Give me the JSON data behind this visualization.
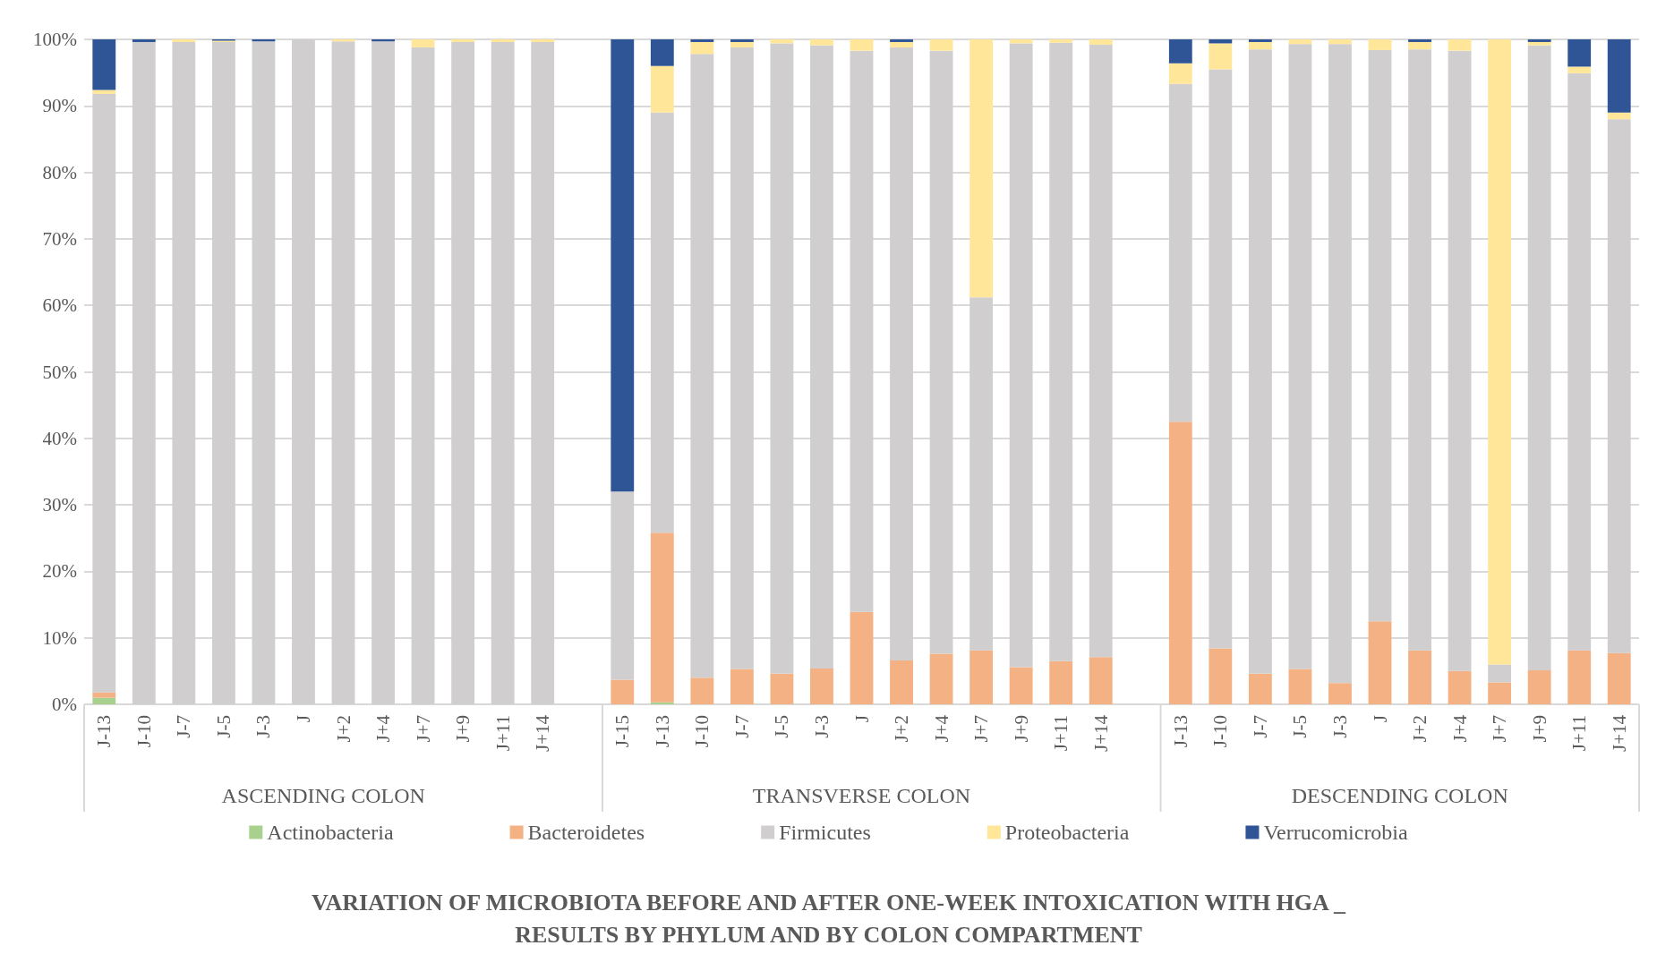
{
  "chart_data": {
    "type": "bar",
    "stacked": true,
    "title": "VARIATION OF MICROBIOTA BEFORE AND AFTER ONE-WEEK INTOXICATION WITH HGA _\nRESULTS BY PHYLUM AND BY COLON COMPARTMENT",
    "categories": [
      "J-13",
      "J-10",
      "J-7",
      "J-5",
      "J-3",
      "J",
      "J+2",
      "J+4",
      "J+7",
      "J+9",
      "J+11",
      "J+14",
      null,
      "J-15",
      "J-13",
      "J-10",
      "J-7",
      "J-5",
      "J-3",
      "J",
      "J+2",
      "J+4",
      "J+7",
      "J+9",
      "J+11",
      "J+14",
      null,
      "J-13",
      "J-10",
      "J-7",
      "J-5",
      "J-3",
      "J",
      "J+2",
      "J+4",
      "J+7",
      "J+9",
      "J+11",
      "J+14"
    ],
    "annotations": [
      "ASCENDING COLON",
      "TRANSVERSE COLON",
      "DESCENDING COLON"
    ],
    "series": [
      {
        "name": "Actinobacteria",
        "color": "#a9d18e",
        "values": [
          1,
          0,
          0,
          0,
          0,
          0,
          0,
          0,
          0,
          0,
          0,
          0,
          null,
          0,
          0.3,
          0,
          0,
          0,
          0,
          0,
          0,
          0,
          0,
          0,
          0,
          0,
          null,
          0,
          0,
          0,
          0,
          0,
          0,
          0,
          0,
          0,
          0,
          0,
          0
        ]
      },
      {
        "name": "Bacteroidetes",
        "color": "#f4b183",
        "values": [
          0.8,
          0,
          0,
          0,
          0,
          0,
          0,
          0,
          0,
          0,
          0,
          0,
          null,
          3.7,
          25.5,
          4,
          5.3,
          4.6,
          5.4,
          13.9,
          6.6,
          7.6,
          8.1,
          5.6,
          6.5,
          7.1,
          null,
          42.5,
          8.4,
          4.6,
          5.3,
          3.2,
          12.5,
          8.1,
          5,
          3.3,
          5.1,
          8.1,
          7.7
        ]
      },
      {
        "name": "Firmicutes",
        "color": "#d0cece",
        "values": [
          90,
          99.6,
          99.6,
          99.6,
          99.7,
          100,
          99.7,
          99.7,
          98.8,
          99.6,
          99.6,
          99.6,
          null,
          28.3,
          63.2,
          93.8,
          93.5,
          94.8,
          93.7,
          84.4,
          92.2,
          90.7,
          53.1,
          93.8,
          93,
          92.1,
          null,
          50.8,
          87.1,
          93.9,
          94,
          96.1,
          85.9,
          90.4,
          93.3,
          2.7,
          94,
          86.8,
          80.3
        ]
      },
      {
        "name": "Proteobacteria",
        "color": "#ffe699",
        "values": [
          0.6,
          0,
          0.4,
          0.2,
          0,
          0,
          0.3,
          0,
          1.2,
          0.4,
          0.4,
          0.4,
          null,
          0,
          7,
          1.8,
          0.8,
          0.6,
          0.9,
          1.7,
          0.8,
          1.7,
          38.8,
          0.6,
          0.5,
          0.8,
          null,
          3.1,
          3.9,
          1.1,
          0.7,
          0.7,
          1.6,
          1.1,
          1.7,
          94,
          0.5,
          1,
          1
        ]
      },
      {
        "name": "Verrucomicrobia",
        "color": "#2f5597",
        "values": [
          7.6,
          0.4,
          0,
          0.3,
          0.3,
          0,
          0,
          0.3,
          0,
          0,
          0,
          0,
          null,
          68,
          4,
          0.4,
          0.4,
          0,
          0,
          0,
          0.4,
          0,
          0,
          0,
          0,
          0,
          null,
          3.6,
          0.6,
          0.4,
          0,
          0,
          0,
          0.4,
          0,
          0,
          0.4,
          4.1,
          11
        ]
      }
    ],
    "ylim": [
      0,
      100
    ],
    "yticks": [
      {
        "value": 0,
        "label": "0%"
      },
      {
        "value": 10,
        "label": "10%"
      },
      {
        "value": 20,
        "label": "20%"
      },
      {
        "value": 30,
        "label": "30%"
      },
      {
        "value": 40,
        "label": "40%"
      },
      {
        "value": 50,
        "label": "50%"
      },
      {
        "value": 60,
        "label": "60%"
      },
      {
        "value": 70,
        "label": "70%"
      },
      {
        "value": 80,
        "label": "80%"
      },
      {
        "value": 90,
        "label": "90%"
      },
      {
        "value": 100,
        "label": "100%"
      }
    ],
    "grid": "y",
    "legend": "bottom"
  }
}
